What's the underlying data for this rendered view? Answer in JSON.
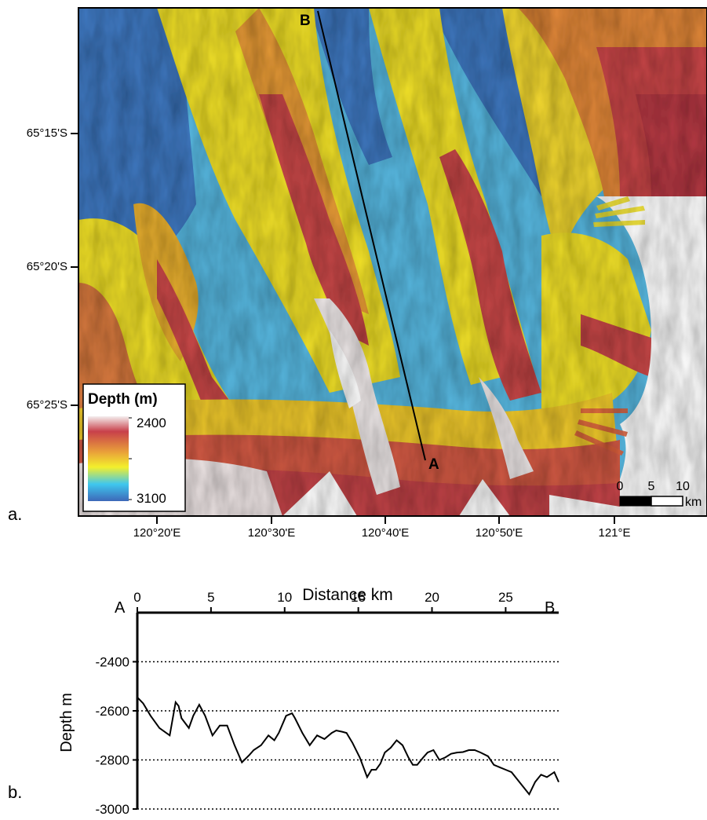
{
  "map": {
    "panel_label": "a.",
    "latitude_labels": [
      "65°15'S",
      "65°20'S",
      "65°25'S"
    ],
    "longitude_labels": [
      "120°20'E",
      "120°30'E",
      "120°40'E",
      "120°50'E",
      "121°E"
    ],
    "line_end_a": "A",
    "line_end_b": "B",
    "legend": {
      "title": "Depth (m)",
      "max_label": "2400",
      "min_label": "3100",
      "colors": [
        "#f4eeee",
        "#c8404a",
        "#e9a03a",
        "#f3ef2c",
        "#3fc7ee",
        "#3d68b8"
      ]
    },
    "scale_bar": {
      "ticks": [
        "0",
        "5",
        "10"
      ],
      "unit": "km"
    }
  },
  "profile": {
    "panel_label": "b.",
    "start_label": "A",
    "end_label": "B",
    "chart_data": {
      "type": "line",
      "title": "",
      "xlabel": "Distance km",
      "ylabel": "Depth m",
      "xlim": [
        0,
        28.6
      ],
      "ylim": [
        -3000,
        -2200
      ],
      "x_ticks": [
        0,
        5,
        10,
        15,
        20,
        25
      ],
      "y_ticks": [
        -2400,
        -2600,
        -2800,
        -3000
      ],
      "grid": "dotted horizontal",
      "series": [
        {
          "x": [
            0,
            0.4,
            0.9,
            1.5,
            2.2,
            2.6,
            2.8,
            3.0,
            3.5,
            3.8,
            4.2,
            4.6,
            5.1,
            5.6,
            6.1,
            6.6,
            7.1,
            7.6,
            7.9,
            8.4,
            8.9,
            9.3,
            9.6,
            10.1,
            10.5,
            10.7,
            11.2,
            11.7,
            12.2,
            12.7,
            13.2,
            13.5,
            13.9,
            14.2,
            14.6,
            15.1,
            15.6,
            15.9,
            16.2,
            16.5,
            16.8,
            17.2,
            17.6,
            18.0,
            18.4,
            18.7,
            19.0,
            19.4,
            19.7,
            20.1,
            20.5,
            20.9,
            21.3,
            21.7,
            22.1,
            22.5,
            22.9,
            23.3,
            23.8,
            24.2,
            24.6,
            25.0,
            25.4,
            25.8,
            26.2,
            26.6,
            27.0,
            27.4,
            27.8,
            28.3,
            28.6
          ],
          "values": [
            -2545,
            -2570,
            -2620,
            -2670,
            -2700,
            -2565,
            -2580,
            -2630,
            -2670,
            -2620,
            -2575,
            -2620,
            -2700,
            -2660,
            -2660,
            -2740,
            -2810,
            -2780,
            -2760,
            -2740,
            -2700,
            -2720,
            -2690,
            -2620,
            -2610,
            -2630,
            -2690,
            -2740,
            -2700,
            -2715,
            -2690,
            -2680,
            -2685,
            -2690,
            -2730,
            -2790,
            -2870,
            -2840,
            -2840,
            -2815,
            -2770,
            -2750,
            -2720,
            -2740,
            -2790,
            -2820,
            -2820,
            -2790,
            -2770,
            -2760,
            -2800,
            -2790,
            -2775,
            -2770,
            -2768,
            -2760,
            -2760,
            -2770,
            -2785,
            -2820,
            -2830,
            -2840,
            -2850,
            -2880,
            -2910,
            -2940,
            -2890,
            -2860,
            -2870,
            -2850,
            -2890
          ]
        }
      ]
    }
  }
}
